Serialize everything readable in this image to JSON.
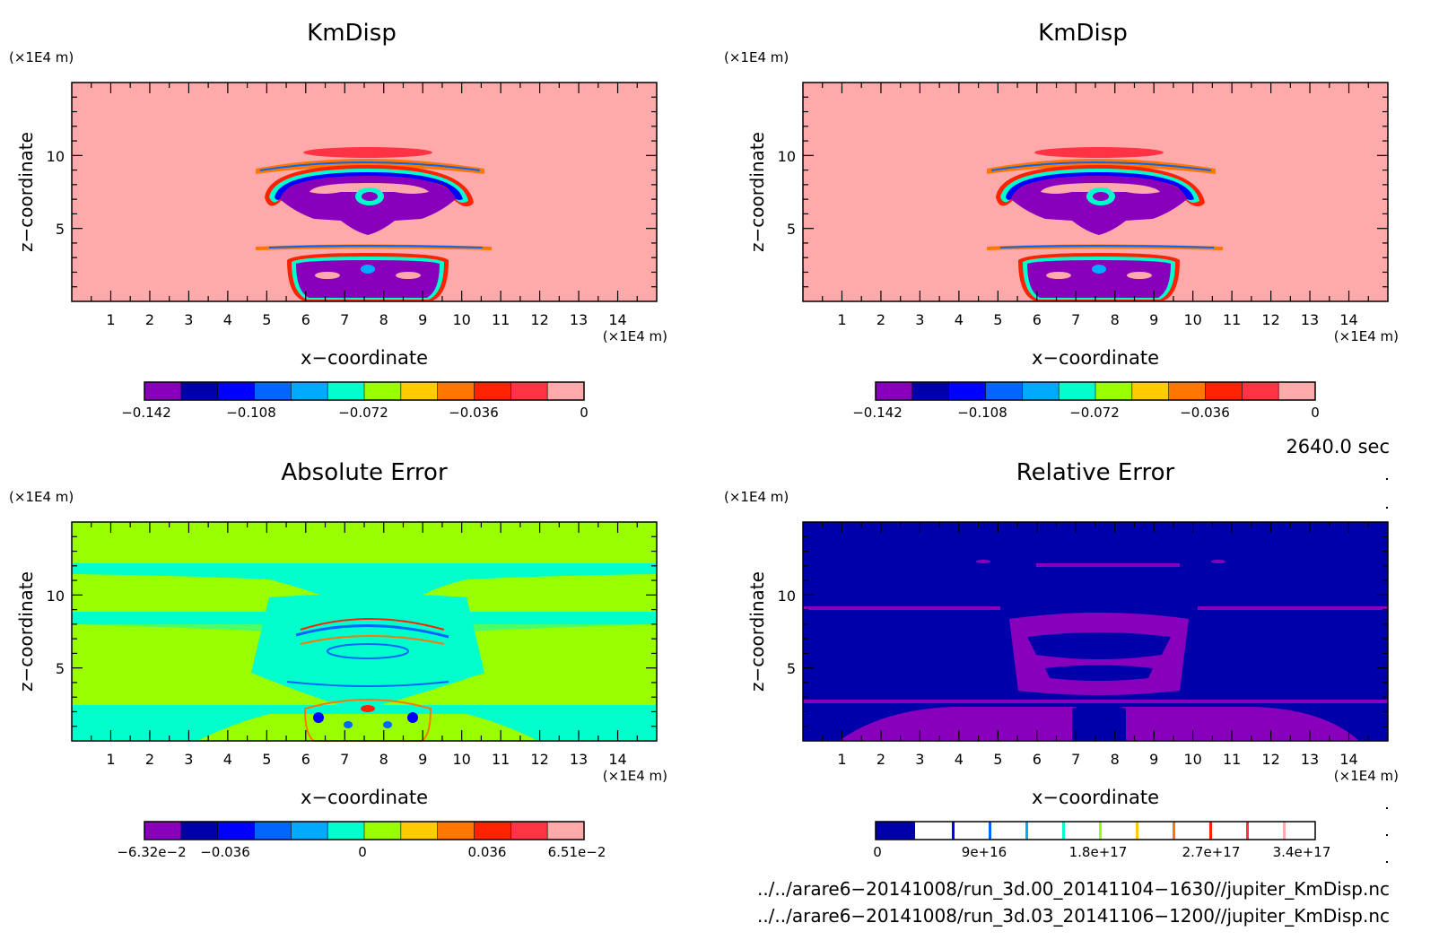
{
  "panels": [
    {
      "id": "p1",
      "title": "KmDisp",
      "unit_top": "(×1E4 m)",
      "unit_right": "(×1E4 m)",
      "xlabel": "x−coordinate",
      "ylabel": "z−coordinate",
      "plot_bg": "#ffaaaa",
      "colorbar": {
        "colors": [
          "#8800bb",
          "#0000aa",
          "#0000ff",
          "#0066ff",
          "#00aaff",
          "#00ffcc",
          "#99ff00",
          "#ffcc00",
          "#ff7700",
          "#ff2200",
          "#ff3344",
          "#ffaaaa"
        ],
        "tick_labels": [
          "−0.142",
          "−0.108",
          "−0.072",
          "−0.036",
          "0"
        ]
      }
    },
    {
      "id": "p2",
      "title": "KmDisp",
      "unit_top": "(×1E4 m)",
      "unit_right": "(×1E4 m)",
      "xlabel": "x−coordinate",
      "ylabel": "z−coordinate",
      "plot_bg": "#ffaaaa",
      "colorbar": {
        "colors": [
          "#8800bb",
          "#0000aa",
          "#0000ff",
          "#0066ff",
          "#00aaff",
          "#00ffcc",
          "#99ff00",
          "#ffcc00",
          "#ff7700",
          "#ff2200",
          "#ff3344",
          "#ffaaaa"
        ],
        "tick_labels": [
          "−0.142",
          "−0.108",
          "−0.072",
          "−0.036",
          "0"
        ]
      }
    },
    {
      "id": "p3",
      "title": "Absolute Error",
      "unit_top": "(×1E4 m)",
      "unit_right": "(×1E4 m)",
      "xlabel": "x−coordinate",
      "ylabel": "z−coordinate",
      "plot_bg": "#99ff00",
      "colorbar": {
        "colors": [
          "#8800bb",
          "#0000aa",
          "#0000ff",
          "#0066ff",
          "#00aaff",
          "#00ffcc",
          "#99ff00",
          "#ffcc00",
          "#ff7700",
          "#ff2200",
          "#ff3344",
          "#ffaaaa"
        ],
        "tick_labels": [
          "−6.32e−2",
          "−0.036",
          "0",
          "0.036",
          "6.51e−2"
        ]
      }
    },
    {
      "id": "p4",
      "title": "Relative Error",
      "unit_top": "(×1E4 m)",
      "unit_right": "(×1E4 m)",
      "xlabel": "x−coordinate",
      "ylabel": "z−coordinate",
      "plot_bg": "#0000aa",
      "colorbar": {
        "colors": [
          "#0000aa",
          "#ffffff"
        ],
        "tick_labels": [
          "0",
          "9e+16",
          "1.8e+17",
          "2.7e+17",
          "3.4e+17"
        ]
      }
    }
  ],
  "time_label": "2640.0 sec",
  "footer_lines": [
    "../../arare6−20141008/run_3d.00_20141104−1630//jupiter_KmDisp.nc",
    "../../arare6−20141008/run_3d.03_20141106−1200//jupiter_KmDisp.nc"
  ],
  "chart_data": [
    {
      "type": "heatmap",
      "title": "KmDisp",
      "xlabel": "x−coordinate",
      "ylabel": "z−coordinate",
      "xlim": [
        0,
        15
      ],
      "ylim": [
        0,
        15
      ],
      "x_ticks": [
        1,
        2,
        3,
        4,
        5,
        6,
        7,
        8,
        9,
        10,
        11,
        12,
        13,
        14
      ],
      "y_ticks": [
        5,
        10
      ],
      "colorbar_range": [
        -0.142,
        0
      ],
      "colorbar_ticks": [
        "−0.142",
        "−0.108",
        "−0.072",
        "−0.036",
        "0"
      ]
    },
    {
      "type": "heatmap",
      "title": "KmDisp",
      "xlabel": "x−coordinate",
      "ylabel": "z−coordinate",
      "xlim": [
        0,
        15
      ],
      "ylim": [
        0,
        15
      ],
      "x_ticks": [
        1,
        2,
        3,
        4,
        5,
        6,
        7,
        8,
        9,
        10,
        11,
        12,
        13,
        14
      ],
      "y_ticks": [
        5,
        10
      ],
      "colorbar_range": [
        -0.142,
        0
      ],
      "colorbar_ticks": [
        "−0.142",
        "−0.108",
        "−0.072",
        "−0.036",
        "0"
      ]
    },
    {
      "type": "heatmap",
      "title": "Absolute Error",
      "xlabel": "x−coordinate",
      "ylabel": "z−coordinate",
      "xlim": [
        0,
        15
      ],
      "ylim": [
        0,
        15
      ],
      "x_ticks": [
        1,
        2,
        3,
        4,
        5,
        6,
        7,
        8,
        9,
        10,
        11,
        12,
        13,
        14
      ],
      "y_ticks": [
        5,
        10
      ],
      "colorbar_range": [
        -0.0632,
        0.0651
      ],
      "colorbar_ticks": [
        "−6.32e−2",
        "−0.036",
        "0",
        "0.036",
        "6.51e−2"
      ]
    },
    {
      "type": "heatmap",
      "title": "Relative Error",
      "xlabel": "x−coordinate",
      "ylabel": "z−coordinate",
      "xlim": [
        0,
        15
      ],
      "ylim": [
        0,
        15
      ],
      "x_ticks": [
        1,
        2,
        3,
        4,
        5,
        6,
        7,
        8,
        9,
        10,
        11,
        12,
        13,
        14
      ],
      "y_ticks": [
        5,
        10
      ],
      "colorbar_range": [
        0,
        3.4e+17
      ],
      "colorbar_ticks": [
        "0",
        "9e+16",
        "1.8e+17",
        "2.7e+17",
        "3.4e+17"
      ]
    }
  ]
}
